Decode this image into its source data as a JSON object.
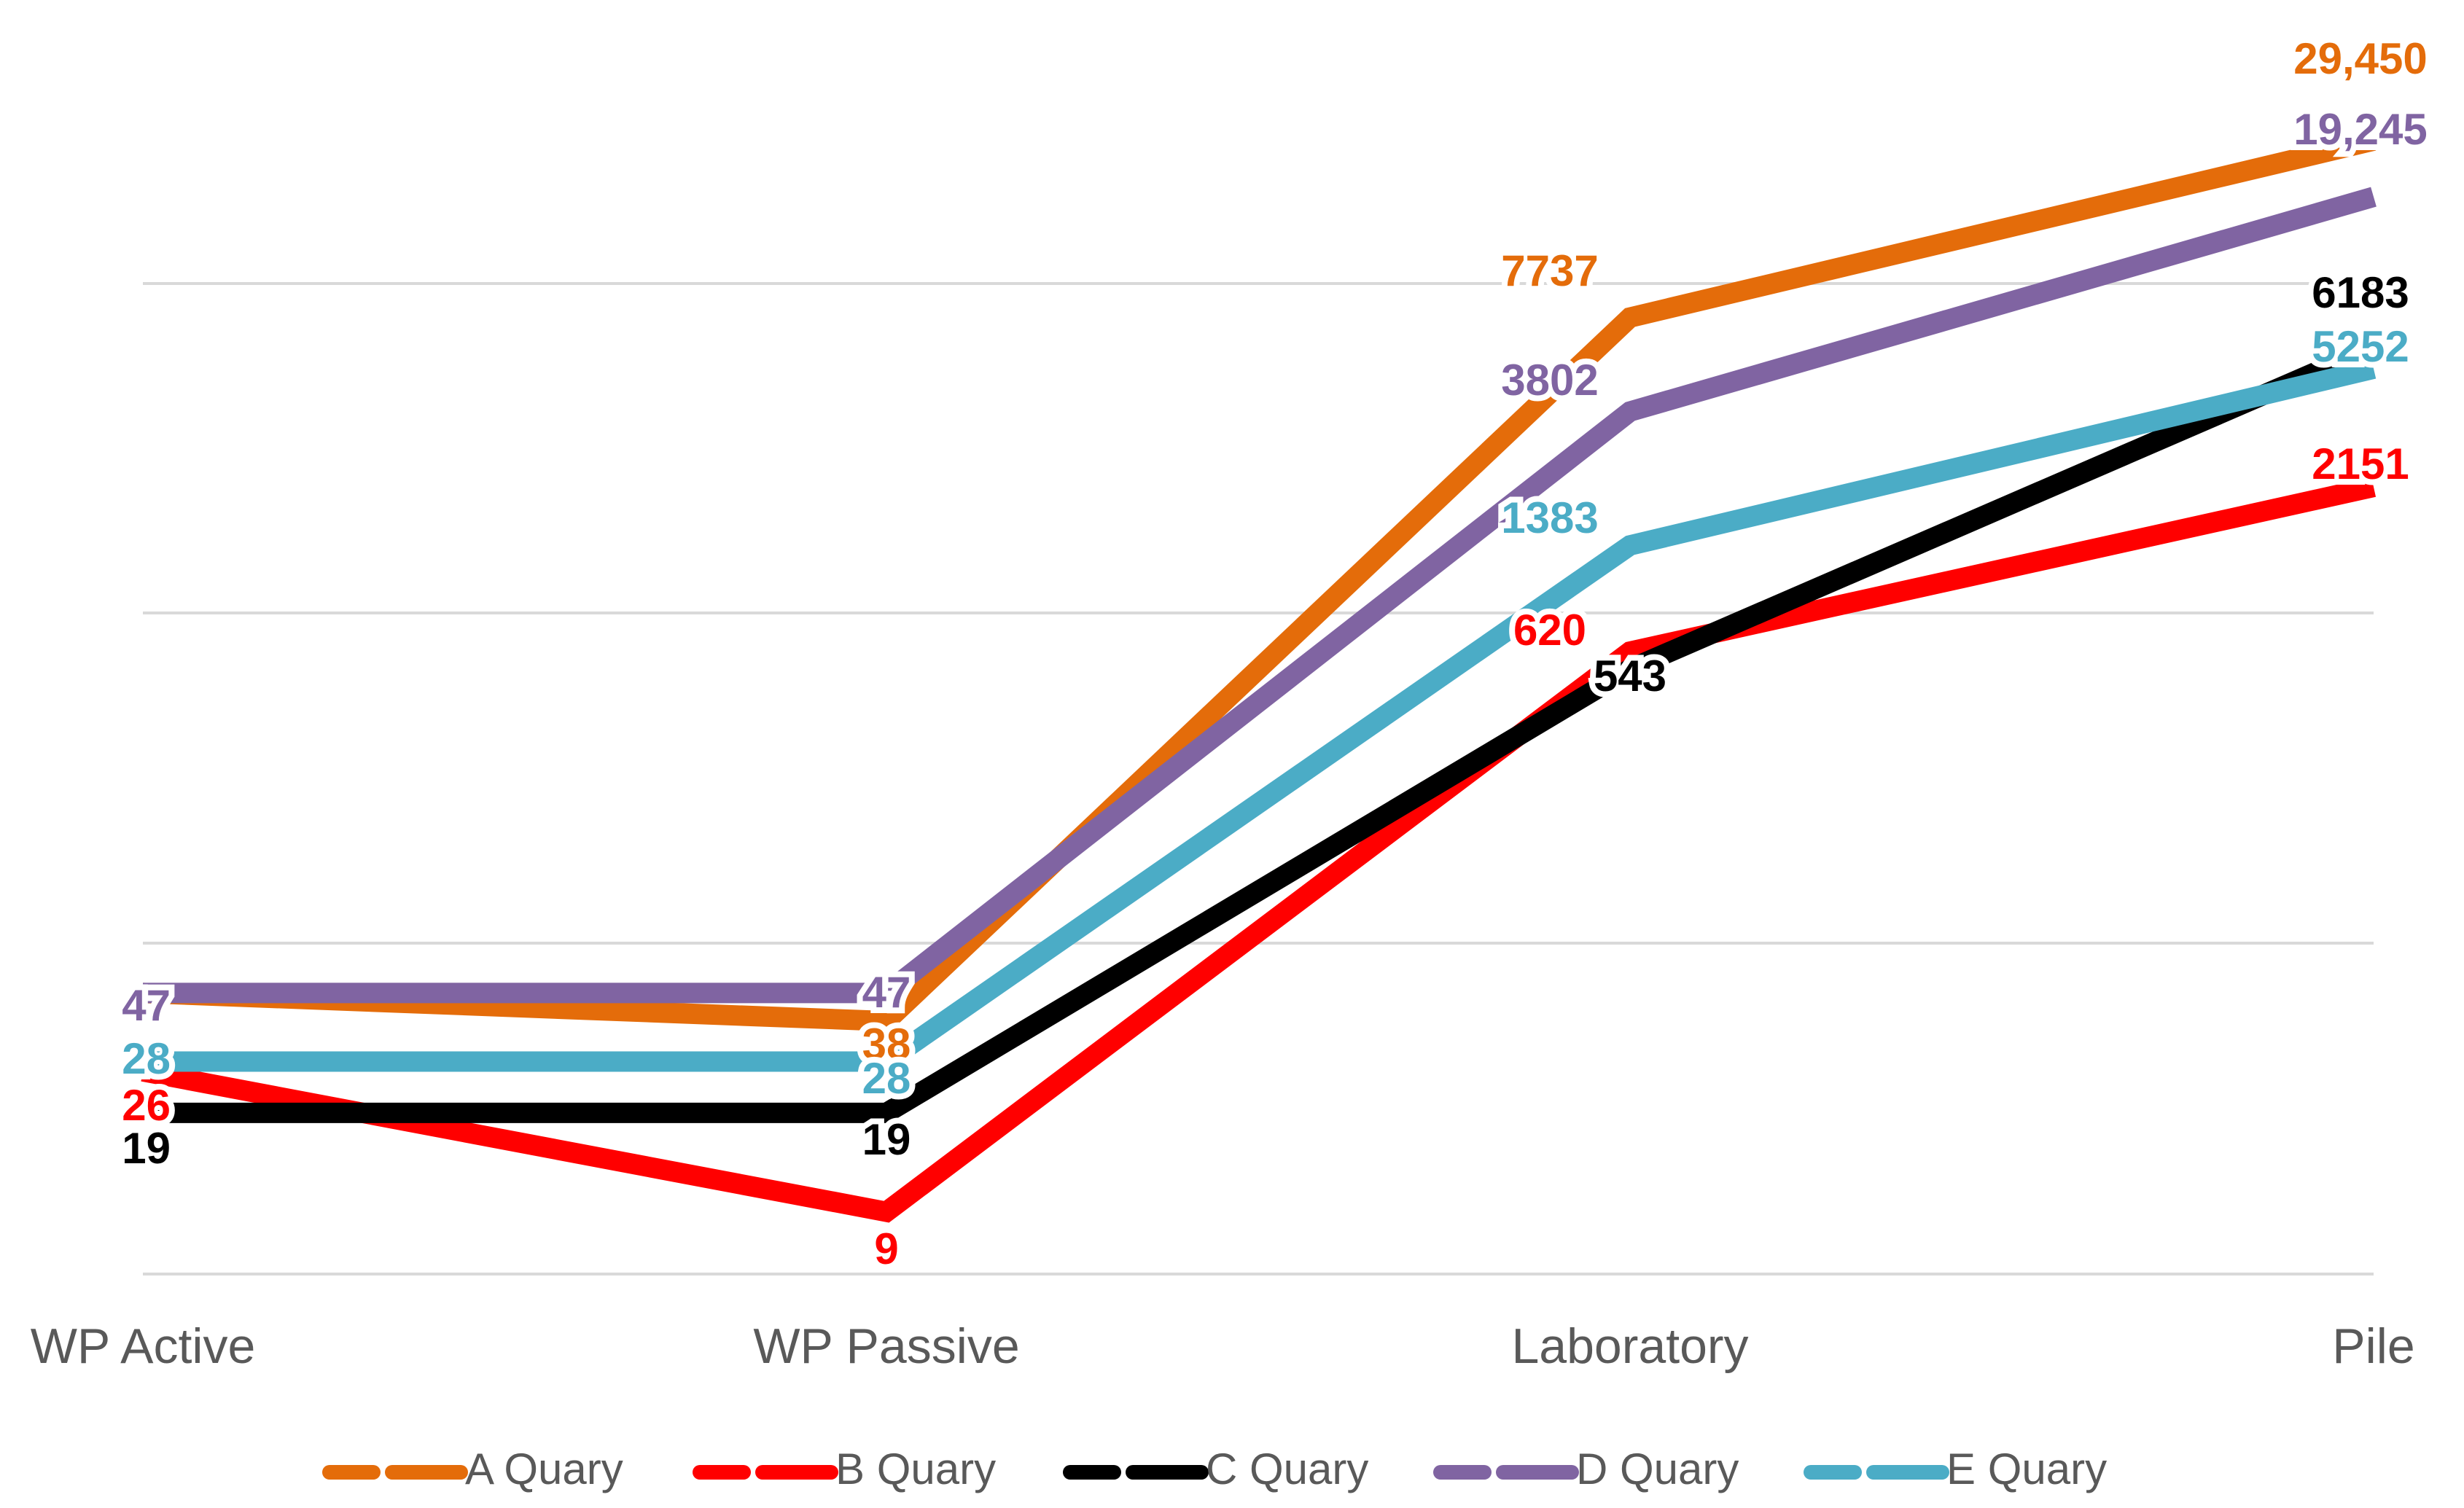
{
  "chart_data": {
    "type": "line",
    "title": "",
    "xlabel": "",
    "ylabel": "",
    "y_scale": "log",
    "y_axis_visible": false,
    "grid": true,
    "legend_position": "bottom",
    "categories": [
      "WP Active",
      "WP Passive",
      "Laboratory",
      "Pile"
    ],
    "series": [
      {
        "name": "A Quary",
        "color": "#E46C0A",
        "values": [
          47,
          38,
          7737,
          29450
        ],
        "labels": [
          "",
          "38",
          "7737",
          "29,450"
        ]
      },
      {
        "name": "B Quary",
        "color": "#FF0000",
        "values": [
          26,
          9,
          620,
          2151
        ],
        "labels": [
          "26",
          "9",
          "620",
          "2151"
        ]
      },
      {
        "name": "C Quary",
        "color": "#000000",
        "values": [
          19,
          19,
          543,
          6183
        ],
        "labels": [
          "19",
          "19",
          "543",
          "6183"
        ]
      },
      {
        "name": "D Quary",
        "color": "#8064A2",
        "values": [
          47,
          47,
          3802,
          19245
        ],
        "labels": [
          "47",
          "47",
          "3802",
          "19,245"
        ]
      },
      {
        "name": "E Quary",
        "color": "#4BACC6",
        "values": [
          28,
          28,
          1383,
          5252
        ],
        "labels": [
          "28",
          "28",
          "1383",
          "5252"
        ]
      }
    ]
  }
}
